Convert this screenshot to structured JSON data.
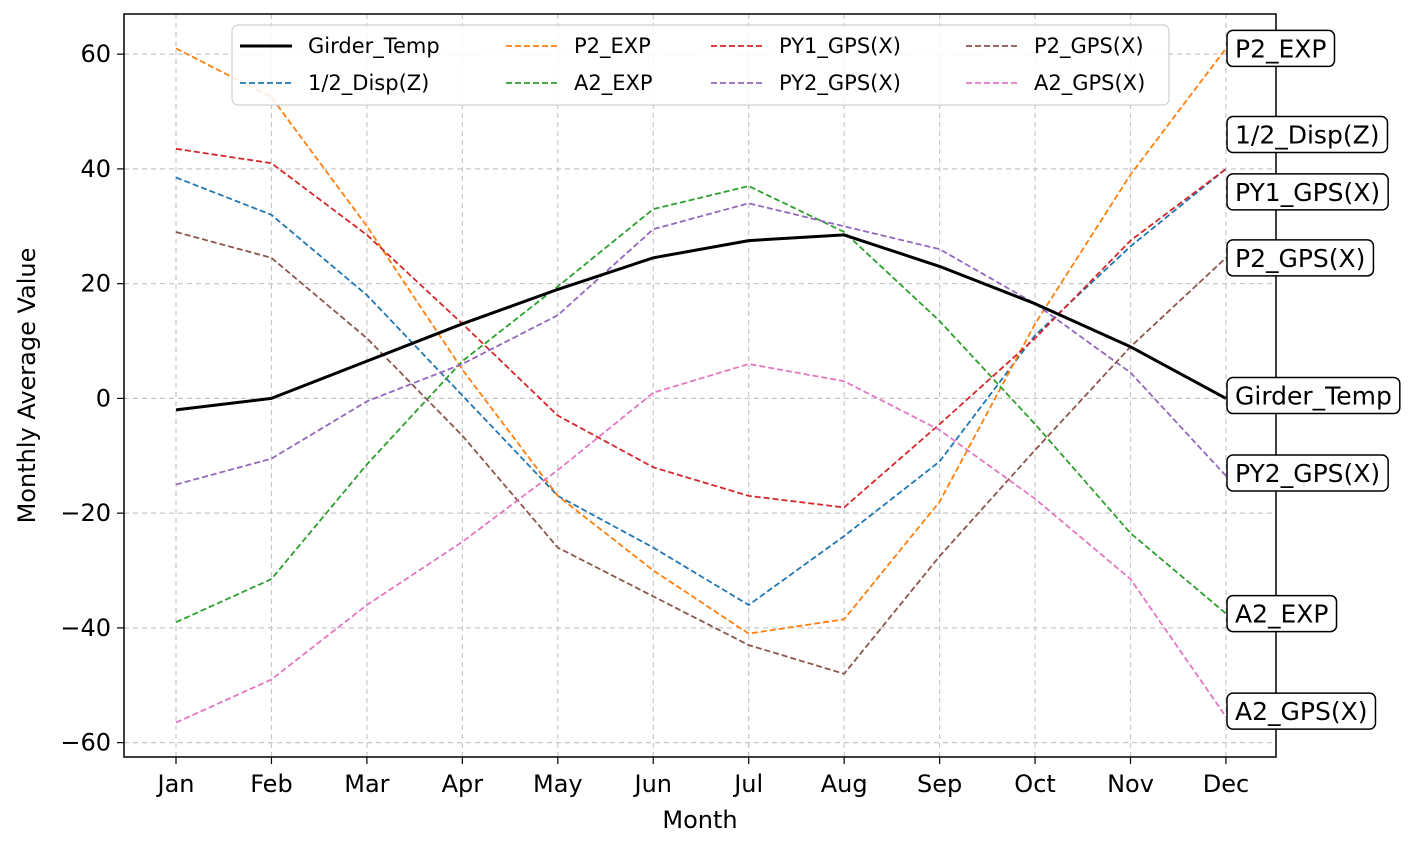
{
  "chart_data": {
    "type": "line",
    "title": "",
    "xlabel": "Month",
    "ylabel": "Monthly Average Value",
    "categories": [
      "Jan",
      "Feb",
      "Mar",
      "Apr",
      "May",
      "Jun",
      "Jul",
      "Aug",
      "Sep",
      "Oct",
      "Nov",
      "Dec"
    ],
    "ylim": [
      -62.5,
      67
    ],
    "yticks": [
      -60,
      -40,
      -20,
      0,
      20,
      40,
      60
    ],
    "ytick_labels": [
      "−60",
      "−40",
      "−20",
      "0",
      "20",
      "40",
      "60"
    ],
    "grid": true,
    "legend_position": "top",
    "series": [
      {
        "name": "Girder_Temp",
        "color": "#000000",
        "style": "solid",
        "values": [
          -2,
          0,
          6.5,
          13,
          19,
          24.5,
          27.5,
          28.5,
          23,
          16.5,
          9,
          0
        ]
      },
      {
        "name": "1/2_Disp(Z)",
        "color": "#1f77b4",
        "style": "dashed",
        "values": [
          38.5,
          32,
          18,
          0.5,
          -17,
          -26,
          -36,
          -24,
          -11,
          11,
          26.5,
          40
        ]
      },
      {
        "name": "P2_EXP",
        "color": "#ff7f0e",
        "style": "dashed",
        "values": [
          61,
          52.5,
          30,
          5,
          -17,
          -30,
          -41,
          -38.5,
          -18,
          13,
          39,
          61
        ]
      },
      {
        "name": "A2_EXP",
        "color": "#2ca02c",
        "style": "dashed",
        "values": [
          -39,
          -31.5,
          -11.5,
          6.5,
          19.5,
          33,
          37,
          29,
          13.5,
          -4.5,
          -23.5,
          -37.5
        ]
      },
      {
        "name": "PY1_GPS(X)",
        "color": "#d62728",
        "style": "dashed",
        "values": [
          43.5,
          41,
          28.5,
          13,
          -3,
          -12,
          -17,
          -19,
          -4.5,
          10.5,
          27.5,
          40
        ]
      },
      {
        "name": "PY2_GPS(X)",
        "color": "#9467bd",
        "style": "dashed",
        "values": [
          -15,
          -10.5,
          -0.5,
          6,
          14.5,
          29.5,
          34,
          30,
          26,
          16.5,
          4.5,
          -13.5
        ]
      },
      {
        "name": "P2_GPS(X)",
        "color": "#8c564b",
        "style": "dashed",
        "values": [
          29,
          24.5,
          10.5,
          -6.5,
          -26,
          -34.5,
          -43,
          -48,
          -27.5,
          -9,
          9,
          24.5
        ]
      },
      {
        "name": "A2_GPS(X)",
        "color": "#e377c2",
        "style": "dashed",
        "values": [
          -56.5,
          -49,
          -36,
          -25,
          -12.5,
          1,
          6,
          3,
          -5.5,
          -17.5,
          -31.5,
          -55.5
        ]
      }
    ],
    "end_labels": [
      {
        "text": "P2_EXP",
        "value": 61
      },
      {
        "text": "1/2_Disp(Z)",
        "value": 46
      },
      {
        "text": "PY1_GPS(X)",
        "value": 36
      },
      {
        "text": "P2_GPS(X)",
        "value": 24.5
      },
      {
        "text": "Girder_Temp",
        "value": 0.5
      },
      {
        "text": "PY2_GPS(X)",
        "value": -13
      },
      {
        "text": "A2_EXP",
        "value": -37.5
      },
      {
        "text": "A2_GPS(X)",
        "value": -54.5
      }
    ]
  }
}
